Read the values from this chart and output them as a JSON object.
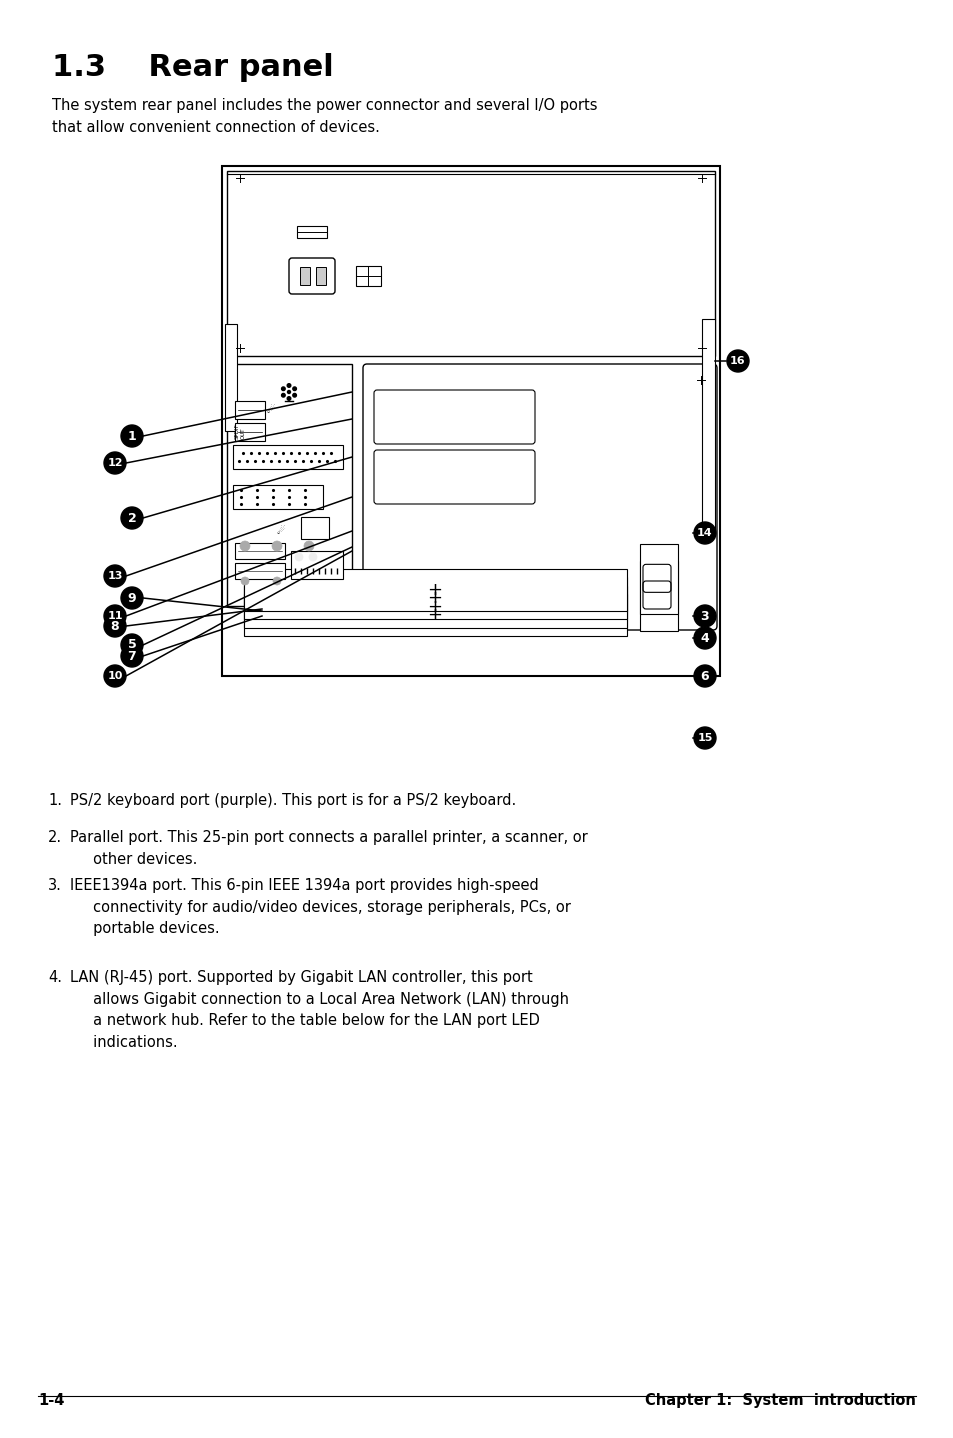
{
  "title": "1.3    Rear panel",
  "intro_text": "The system rear panel includes the power connector and several I/O ports\nthat allow convenient connection of devices.",
  "list_items": [
    [
      "1.",
      "PS/2 keyboard port (purple). This port is for a PS/2 keyboard."
    ],
    [
      "2.",
      "Parallel port. This 25-pin port connects a parallel printer, a scanner, or\n     other devices."
    ],
    [
      "3.",
      "IEEE1394a port. This 6-pin IEEE 1394a port provides high-speed\n     connectivity for audio/video devices, storage peripherals, PCs, or\n     portable devices."
    ],
    [
      "4.",
      "LAN (RJ-45) port. Supported by Gigabit LAN controller, this port\n     allows Gigabit connection to a Local Area Network (LAN) through\n     a network hub. Refer to the table below for the LAN port LED\n     indications."
    ]
  ],
  "footer_left": "1-4",
  "footer_right": "Chapter 1:  System  introduction",
  "bg_color": "#ffffff",
  "text_color": "#000000"
}
